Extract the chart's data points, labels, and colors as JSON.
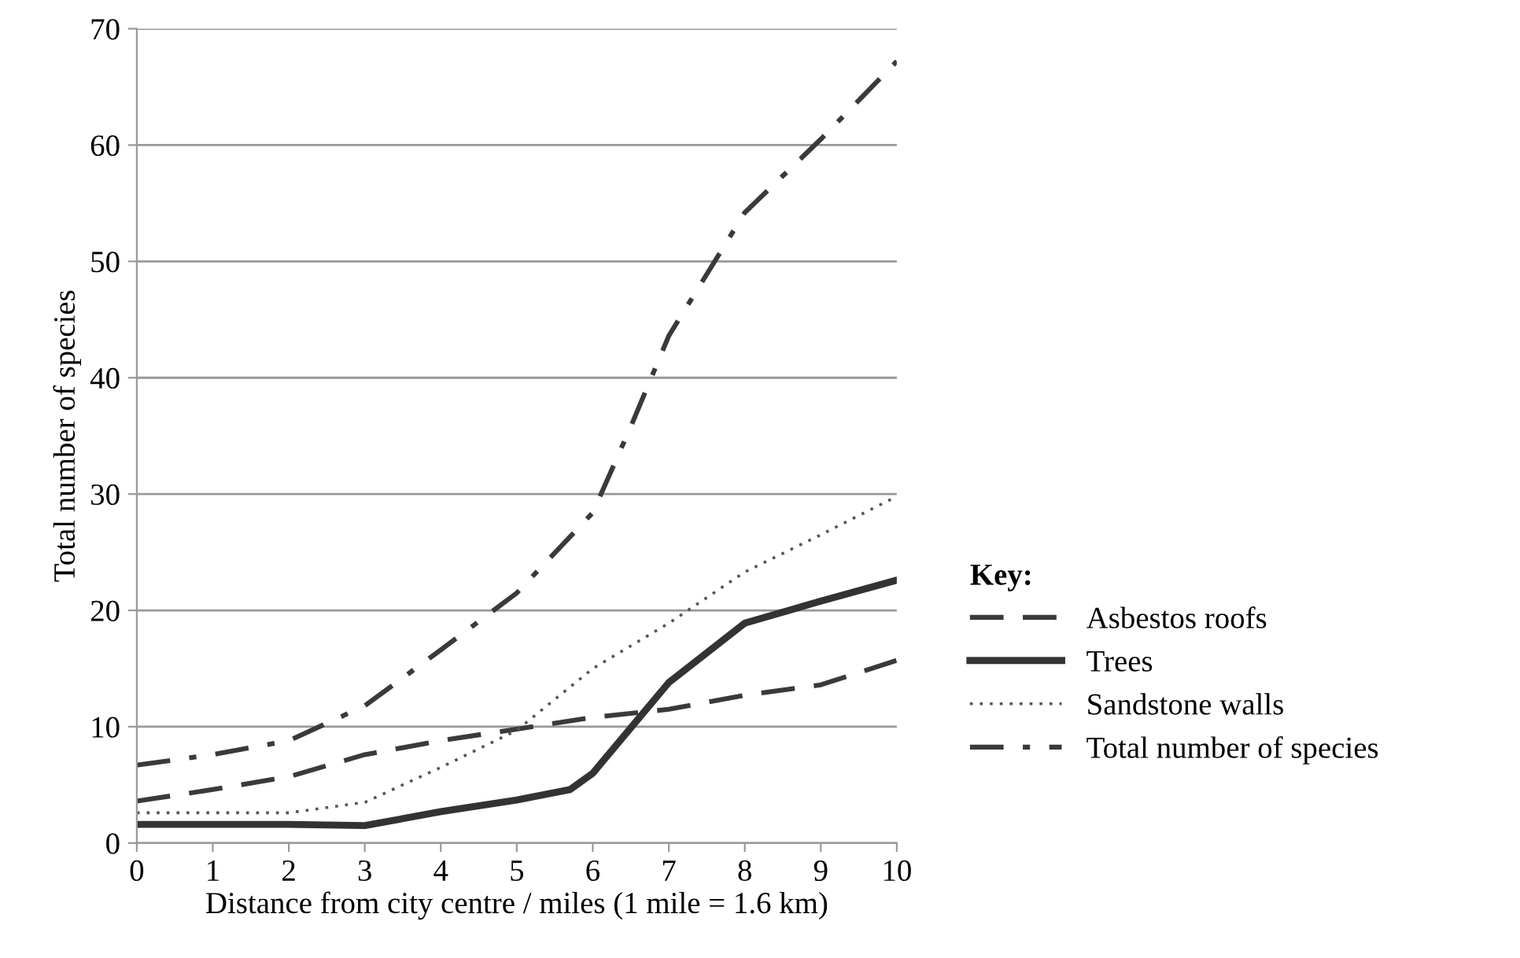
{
  "chart_data": {
    "type": "line",
    "xlabel": "Distance from city centre / miles (1 mile = 1.6 km)",
    "ylabel": "Total number of species",
    "legend_title": "Key:",
    "xlim": [
      0,
      10
    ],
    "xticks": [
      0,
      1,
      2,
      3,
      4,
      5,
      6,
      7,
      8,
      9,
      10
    ],
    "ylim": [
      0,
      70
    ],
    "yticks": [
      0,
      10,
      20,
      30,
      40,
      50,
      60,
      70
    ],
    "grid": "y",
    "legend": "right",
    "marker": "none",
    "series": [
      {
        "name": "Asbestos roofs",
        "color": "#3a3a3a",
        "line_style": "dashed",
        "x": [
          0,
          1,
          2,
          3,
          4,
          5,
          6,
          7,
          8,
          9,
          10
        ],
        "values": [
          3.6,
          4.6,
          5.7,
          7.6,
          8.8,
          9.8,
          10.8,
          11.5,
          12.7,
          13.6,
          15.7
        ]
      },
      {
        "name": "Trees",
        "color": "#333333",
        "line_style": "solid",
        "x": [
          0,
          1,
          2,
          3,
          4,
          5,
          5.7,
          6,
          6.5,
          7,
          8,
          9,
          10
        ],
        "values": [
          1.6,
          1.6,
          1.6,
          1.5,
          2.7,
          3.7,
          4.6,
          6.0,
          9.9,
          13.8,
          18.9,
          20.8,
          22.6
        ]
      },
      {
        "name": "Sandstone walls",
        "color": "#555555",
        "line_style": "dotted",
        "x": [
          0,
          1,
          2,
          3,
          4,
          5,
          6,
          7,
          8,
          9,
          10
        ],
        "values": [
          2.6,
          2.6,
          2.6,
          3.5,
          6.5,
          9.7,
          15.0,
          18.9,
          23.3,
          26.5,
          29.8
        ]
      },
      {
        "name": "Total number of species",
        "color": "#3a3a3a",
        "line_style": "dashdot",
        "x": [
          0,
          1,
          2,
          3,
          4,
          5,
          6,
          6.5,
          7,
          8,
          9,
          10
        ],
        "values": [
          6.7,
          7.6,
          8.8,
          11.8,
          16.6,
          21.5,
          28.4,
          35.8,
          43.6,
          54.2,
          60.5,
          67.2
        ]
      }
    ]
  }
}
